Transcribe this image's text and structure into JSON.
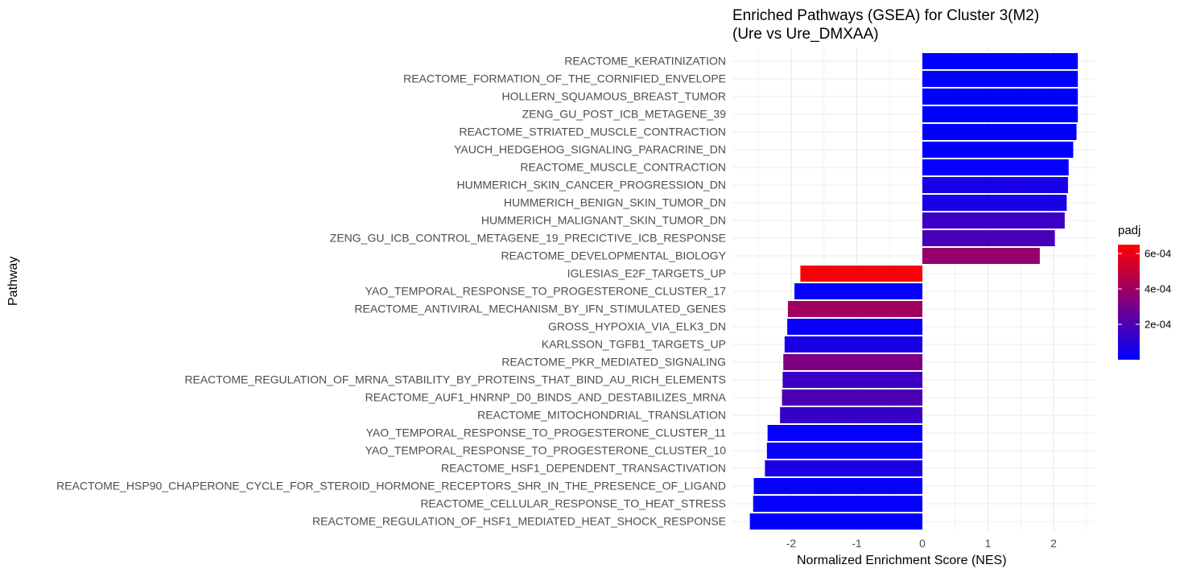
{
  "chart_data": {
    "type": "bar",
    "orientation": "horizontal",
    "title": "Enriched Pathways (GSEA) for Cluster 3(M2)",
    "subtitle": "(Ure vs Ure_DMXAA)",
    "xlabel": "Normalized Enrichment Score (NES)",
    "ylabel": "Pathway",
    "xlim": [
      -2.65,
      2.6
    ],
    "x_ticks": [
      -2,
      -1,
      0,
      1,
      2
    ],
    "x_tick_labels": [
      "-2",
      "-1",
      "0",
      "1",
      "2"
    ],
    "grid": true,
    "categories": [
      "REACTOME_KERATINIZATION",
      "REACTOME_FORMATION_OF_THE_CORNIFIED_ENVELOPE",
      "HOLLERN_SQUAMOUS_BREAST_TUMOR",
      "ZENG_GU_POST_ICB_METAGENE_39",
      "REACTOME_STRIATED_MUSCLE_CONTRACTION",
      "YAUCH_HEDGEHOG_SIGNALING_PARACRINE_DN",
      "REACTOME_MUSCLE_CONTRACTION",
      "HUMMERICH_SKIN_CANCER_PROGRESSION_DN",
      "HUMMERICH_BENIGN_SKIN_TUMOR_DN",
      "HUMMERICH_MALIGNANT_SKIN_TUMOR_DN",
      "ZENG_GU_ICB_CONTROL_METAGENE_19_PRECICTIVE_ICB_RESPONSE",
      "REACTOME_DEVELOPMENTAL_BIOLOGY",
      "IGLESIAS_E2F_TARGETS_UP",
      "YAO_TEMPORAL_RESPONSE_TO_PROGESTERONE_CLUSTER_17",
      "REACTOME_ANTIVIRAL_MECHANISM_BY_IFN_STIMULATED_GENES",
      "GROSS_HYPOXIA_VIA_ELK3_DN",
      "KARLSSON_TGFB1_TARGETS_UP",
      "REACTOME_PKR_MEDIATED_SIGNALING",
      "REACTOME_REGULATION_OF_MRNA_STABILITY_BY_PROTEINS_THAT_BIND_AU_RICH_ELEMENTS",
      "REACTOME_AUF1_HNRNP_D0_BINDS_AND_DESTABILIZES_MRNA",
      "REACTOME_MITOCHONDRIAL_TRANSLATION",
      "YAO_TEMPORAL_RESPONSE_TO_PROGESTERONE_CLUSTER_11",
      "YAO_TEMPORAL_RESPONSE_TO_PROGESTERONE_CLUSTER_10",
      "REACTOME_HSF1_DEPENDENT_TRANSACTIVATION",
      "REACTOME_HSP90_CHAPERONE_CYCLE_FOR_STEROID_HORMONE_RECEPTORS_SHR_IN_THE_PRESENCE_OF_LIGAND",
      "REACTOME_CELLULAR_RESPONSE_TO_HEAT_STRESS",
      "REACTOME_REGULATION_OF_HSF1_MEDIATED_HEAT_SHOCK_RESPONSE"
    ],
    "values": [
      2.37,
      2.37,
      2.37,
      2.37,
      2.35,
      2.3,
      2.23,
      2.22,
      2.2,
      2.17,
      2.02,
      1.79,
      -1.86,
      -1.95,
      -2.05,
      -2.06,
      -2.1,
      -2.12,
      -2.13,
      -2.14,
      -2.17,
      -2.36,
      -2.37,
      -2.4,
      -2.57,
      -2.58,
      -2.63
    ],
    "padj": [
      1e-06,
      1e-06,
      1e-06,
      1e-06,
      1e-06,
      1e-06,
      1e-05,
      6e-05,
      6e-05,
      0.00015,
      0.00018,
      0.00038,
      0.00063,
      1e-05,
      0.00041,
      2e-05,
      6e-05,
      0.00032,
      0.00015,
      0.00019,
      0.00014,
      1e-05,
      2e-05,
      7e-05,
      1e-05,
      1e-05,
      1e-06
    ],
    "legend": {
      "title": "padj",
      "placement": "right",
      "type": "gradient",
      "low_color": "#0000ff",
      "high_color": "#ff0000",
      "min": 0,
      "max": 0.00065,
      "breaks": [
        0.0002,
        0.0004,
        0.0006
      ],
      "break_labels": [
        "2e-04",
        "4e-04",
        "6e-04"
      ]
    }
  }
}
